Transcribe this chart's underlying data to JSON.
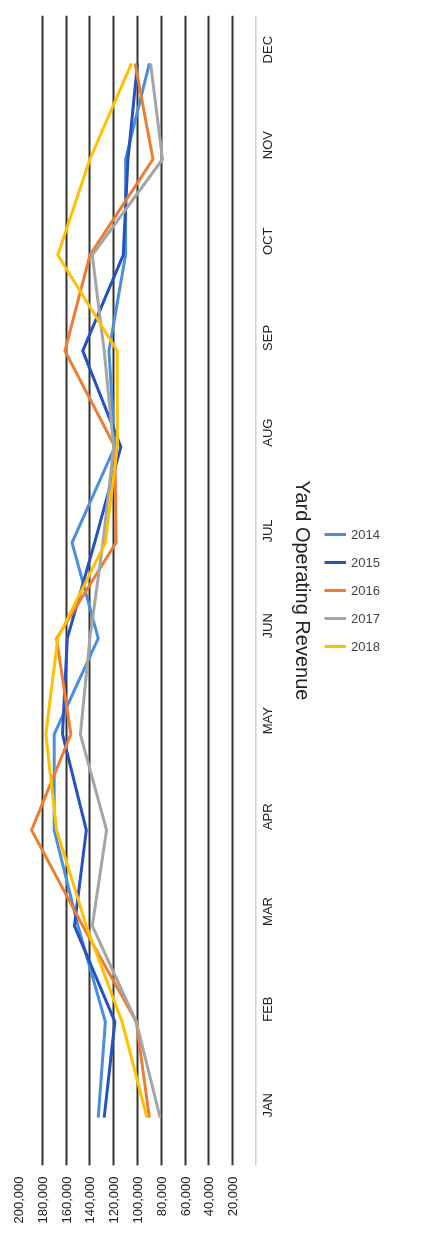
{
  "chart_data": {
    "type": "line",
    "title": "Yard Operating Revenue",
    "orientation": "horizontal",
    "categories": [
      "DEC",
      "NOV",
      "OCT",
      "SEP",
      "AUG",
      "JUL",
      "JUN",
      "MAY",
      "APR",
      "MAR",
      "FEB",
      "JAN"
    ],
    "series": [
      {
        "name": "2014",
        "color": "#4a8fdc",
        "values": [
          90000,
          110000,
          110000,
          124000,
          119000,
          155000,
          133000,
          170000,
          170000,
          150000,
          127000,
          133000
        ]
      },
      {
        "name": "2015",
        "color": "#2452c0",
        "values": [
          100000,
          108000,
          112000,
          146000,
          114000,
          136000,
          159000,
          163000,
          143000,
          153000,
          119000,
          128000
        ]
      },
      {
        "name": "2016",
        "color": "#ed7d31",
        "values": [
          102000,
          87000,
          140000,
          161000,
          119000,
          118000,
          168000,
          156000,
          189000,
          146000,
          101000,
          90000
        ]
      },
      {
        "name": "2017",
        "color": "#a5a5a5",
        "values": [
          89000,
          79000,
          138000,
          128000,
          120000,
          129000,
          140000,
          148000,
          126000,
          138000,
          101000,
          81000
        ]
      },
      {
        "name": "2018",
        "color": "#ffc000",
        "values": [
          105000,
          140000,
          167000,
          117000,
          117000,
          127000,
          167000,
          177000,
          168000,
          143000,
          113000,
          92000
        ]
      }
    ],
    "xlim": [
      200000,
      0
    ],
    "xticks": [
      {
        "value": 200000,
        "label": "200,000"
      },
      {
        "value": 180000,
        "label": "180,000"
      },
      {
        "value": 160000,
        "label": "160,000"
      },
      {
        "value": 140000,
        "label": "140,000"
      },
      {
        "value": 120000,
        "label": "120,000"
      },
      {
        "value": 100000,
        "label": "100,000"
      },
      {
        "value": 80000,
        "label": "80,000"
      },
      {
        "value": 60000,
        "label": "60,000"
      },
      {
        "value": 40000,
        "label": "40,000"
      },
      {
        "value": 20000,
        "label": "20,000"
      }
    ],
    "grid": "x",
    "legend": "right"
  }
}
